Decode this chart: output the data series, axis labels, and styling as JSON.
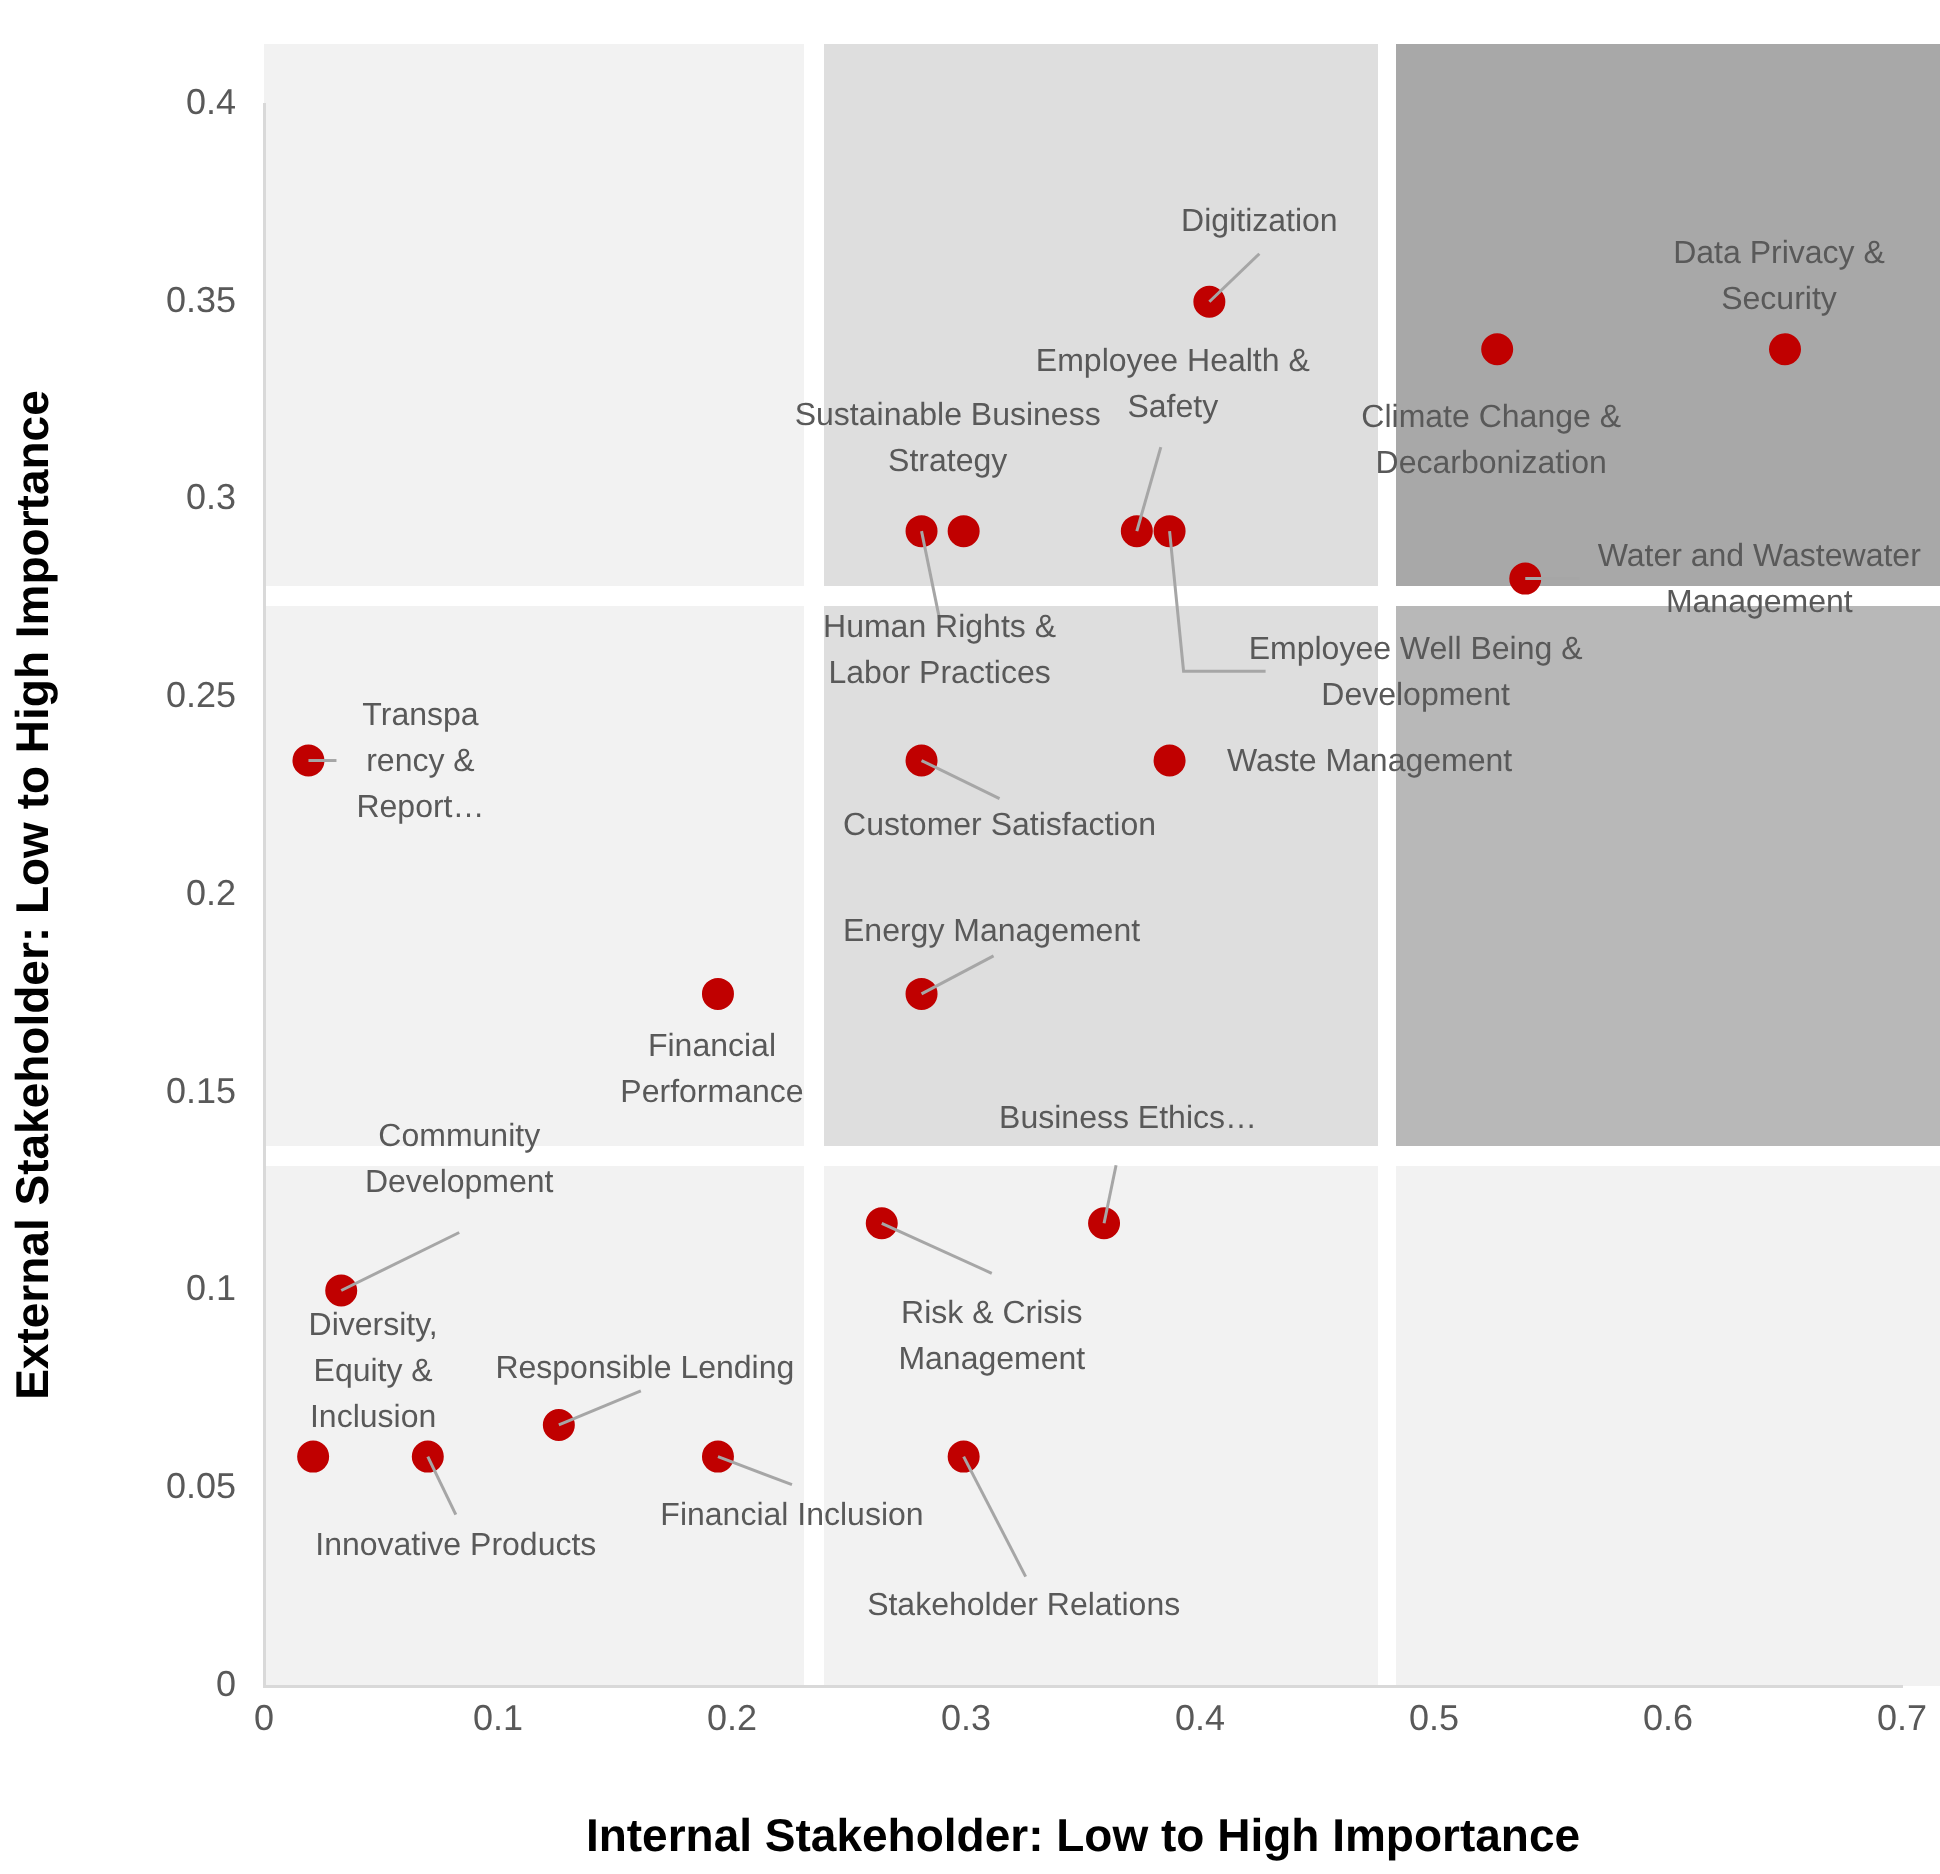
{
  "chart_data": {
    "type": "scatter",
    "xlabel": "Internal Stakeholder: Low to High Importance",
    "ylabel": "External Stakeholder: Low to High Importance",
    "xlim": [
      0,
      0.7
    ],
    "xticks": [
      0,
      0.1,
      0.2,
      0.3,
      0.4,
      0.5,
      0.6,
      0.7
    ],
    "ylim": [
      0,
      0.4
    ],
    "yticks": [
      0,
      0.05,
      0.1,
      0.15,
      0.2,
      0.25,
      0.3,
      0.35,
      0.4
    ],
    "grid": false,
    "legend": false,
    "marker": "circle",
    "x": [
      0.404,
      0.65,
      0.527,
      0.539,
      0.299,
      0.281,
      0.373,
      0.387,
      0.019,
      0.281,
      0.387,
      0.194,
      0.281,
      0.264,
      0.359,
      0.033,
      0.021,
      0.07,
      0.126,
      0.194,
      0.299
    ],
    "series": [
      {
        "color": "#c00000",
        "values": [
          0.35,
          0.338,
          0.338,
          0.28,
          0.292,
          0.292,
          0.292,
          0.292,
          0.234,
          0.234,
          0.234,
          0.175,
          0.175,
          0.117,
          0.117,
          0.1,
          0.058,
          0.058,
          0.066,
          0.058,
          0.058
        ]
      }
    ],
    "annotations": [
      {
        "text": "Digitization",
        "x": 0.404,
        "y": 0.35
      },
      {
        "text": "Data Privacy &\nSecurity",
        "x": 0.65,
        "y": 0.338
      },
      {
        "text": "Climate Change &\nDecarbonization",
        "x": 0.527,
        "y": 0.338
      },
      {
        "text": "Water and Wastewater\nManagement",
        "x": 0.539,
        "y": 0.28
      },
      {
        "text": "Sustainable Business\nStrategy",
        "x": 0.299,
        "y": 0.292
      },
      {
        "text": "Human Rights &\nLabor Practices",
        "x": 0.281,
        "y": 0.292
      },
      {
        "text": "Employee Health &\nSafety",
        "x": 0.373,
        "y": 0.292
      },
      {
        "text": "Employee Well Being &\nDevelopment",
        "x": 0.387,
        "y": 0.292
      },
      {
        "text": "Transpa\nrency &\nReport…",
        "x": 0.019,
        "y": 0.234
      },
      {
        "text": "Customer Satisfaction",
        "x": 0.281,
        "y": 0.234
      },
      {
        "text": "Waste Management",
        "x": 0.387,
        "y": 0.234
      },
      {
        "text": "Financial\nPerformance",
        "x": 0.194,
        "y": 0.175
      },
      {
        "text": "Energy Management",
        "x": 0.281,
        "y": 0.175
      },
      {
        "text": "Risk & Crisis\nManagement",
        "x": 0.264,
        "y": 0.117
      },
      {
        "text": "Business Ethics…",
        "x": 0.359,
        "y": 0.117
      },
      {
        "text": "Community\nDevelopment",
        "x": 0.033,
        "y": 0.1
      },
      {
        "text": "Diversity,\nEquity &\nInclusion",
        "x": 0.021,
        "y": 0.058
      },
      {
        "text": "Innovative Products",
        "x": 0.07,
        "y": 0.058
      },
      {
        "text": "Responsible Lending",
        "x": 0.126,
        "y": 0.066
      },
      {
        "text": "Financial Inclusion",
        "x": 0.194,
        "y": 0.058
      },
      {
        "text": "Stakeholder Relations",
        "x": 0.299,
        "y": 0.058
      }
    ]
  }
}
